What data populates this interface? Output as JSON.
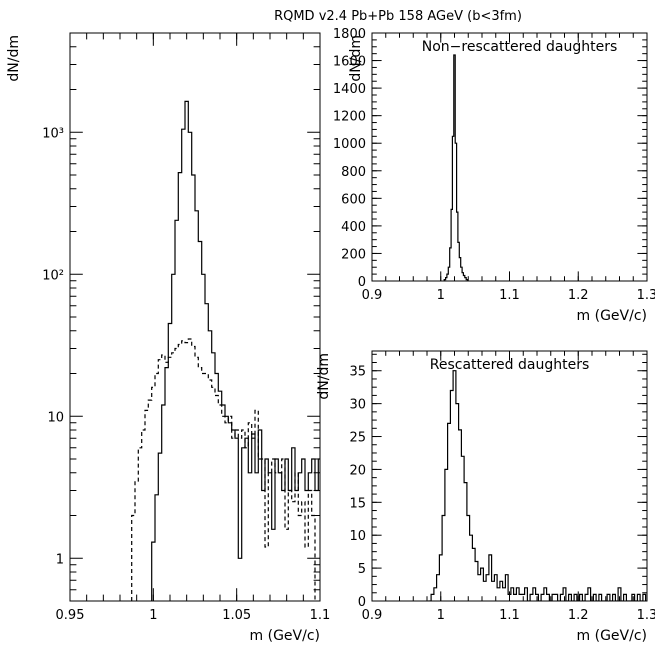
{
  "title": "RQMD v2.4 Pb+Pb 158 AGeV (b<3fm)",
  "chart_data": [
    {
      "type": "line",
      "ylabel": "dN/dm",
      "xlabel": "m (GeV/c)",
      "xlim": [
        0.95,
        1.1
      ],
      "ylim": [
        0.5,
        5000
      ],
      "yscale": "log",
      "xticks": [
        0.95,
        1,
        1.05,
        1.1
      ],
      "xtick_labels": [
        "0.95",
        "1",
        "1.05",
        "1.1"
      ],
      "yticks": [
        1,
        10,
        100,
        1000
      ],
      "ytick_labels": [
        "1",
        "10",
        "10²",
        "10³"
      ],
      "series": [
        {
          "style": "solid",
          "x": [
            1.0,
            1.002,
            1.004,
            1.006,
            1.008,
            1.01,
            1.012,
            1.014,
            1.016,
            1.018,
            1.02,
            1.022,
            1.024,
            1.026,
            1.028,
            1.03,
            1.032,
            1.034,
            1.036,
            1.038,
            1.04,
            1.042,
            1.044,
            1.046,
            1.048,
            1.05,
            1.052,
            1.054,
            1.056,
            1.058,
            1.06,
            1.062,
            1.064,
            1.066,
            1.068,
            1.07,
            1.072,
            1.074,
            1.076,
            1.078,
            1.08,
            1.082,
            1.084,
            1.086,
            1.088,
            1.09,
            1.092,
            1.094,
            1.096,
            1.098,
            1.1
          ],
          "y": [
            1.3,
            2.8,
            5.5,
            12,
            22,
            45,
            100,
            240,
            520,
            1050,
            1650,
            1000,
            500,
            280,
            170,
            100,
            62,
            40,
            28,
            20,
            15,
            12,
            10,
            9,
            8,
            7,
            1.0,
            6,
            7,
            4,
            7.5,
            4,
            8,
            3,
            5,
            4,
            1.6,
            5,
            4,
            3,
            5,
            3,
            6,
            3,
            4,
            5,
            3,
            4,
            5,
            3,
            5
          ]
        },
        {
          "style": "dashed",
          "x": [
            0.988,
            0.99,
            0.992,
            0.994,
            0.996,
            0.998,
            1.0,
            1.002,
            1.004,
            1.006,
            1.008,
            1.01,
            1.012,
            1.014,
            1.016,
            1.018,
            1.02,
            1.022,
            1.024,
            1.026,
            1.028,
            1.03,
            1.032,
            1.034,
            1.036,
            1.038,
            1.04,
            1.042,
            1.044,
            1.046,
            1.048,
            1.05,
            1.052,
            1.054,
            1.056,
            1.058,
            1.06,
            1.062,
            1.064,
            1.066,
            1.068,
            1.07,
            1.072,
            1.074,
            1.076,
            1.078,
            1.08,
            1.082,
            1.084,
            1.086,
            1.088,
            1.09,
            1.092,
            1.094,
            1.096
          ],
          "y": [
            2.0,
            3.5,
            6,
            8,
            11,
            13,
            16,
            20,
            25,
            27,
            24,
            26,
            28,
            30,
            32,
            34,
            33,
            35,
            31,
            26,
            22,
            20,
            20,
            18,
            16,
            14,
            12,
            10,
            9,
            10,
            7,
            8,
            7,
            8,
            6,
            9,
            7,
            11,
            5,
            5,
            1.2,
            4,
            5,
            4,
            4,
            5,
            1.6,
            3,
            2.5,
            4,
            2.0,
            2.5,
            1.2,
            3,
            2.0
          ]
        }
      ]
    },
    {
      "type": "line",
      "title": "Non−rescattered daughters",
      "ylabel": "dN/dm",
      "xlabel": "m (GeV/c)",
      "xlim": [
        0.9,
        1.3
      ],
      "ylim": [
        0,
        1800
      ],
      "xticks": [
        0.9,
        1,
        1.1,
        1.2,
        1.3
      ],
      "xtick_labels": [
        "0.9",
        "1",
        "1.1",
        "1.2",
        "1.3"
      ],
      "yticks": [
        0,
        200,
        400,
        600,
        800,
        1000,
        1200,
        1400,
        1600,
        1800
      ],
      "series": [
        {
          "style": "solid",
          "x": [
            1.006,
            1.008,
            1.01,
            1.012,
            1.014,
            1.016,
            1.018,
            1.02,
            1.022,
            1.024,
            1.026,
            1.028,
            1.03,
            1.032,
            1.034,
            1.036,
            1.038
          ],
          "y": [
            10,
            25,
            50,
            100,
            240,
            520,
            1050,
            1640,
            1000,
            500,
            280,
            170,
            100,
            60,
            40,
            25,
            10
          ]
        }
      ]
    },
    {
      "type": "line",
      "title": "Rescattered daughters",
      "ylabel": "dN/dm",
      "xlabel": "m (GeV/c)",
      "xlim": [
        0.9,
        1.3
      ],
      "ylim": [
        0,
        38
      ],
      "xticks": [
        0.9,
        1,
        1.1,
        1.2,
        1.3
      ],
      "xtick_labels": [
        "0.9",
        "1",
        "1.1",
        "1.2",
        "1.3"
      ],
      "yticks": [
        0,
        5,
        10,
        15,
        20,
        25,
        30,
        35
      ],
      "series": [
        {
          "style": "solid",
          "x": [
            0.984,
            0.988,
            0.992,
            0.996,
            1.0,
            1.004,
            1.008,
            1.012,
            1.016,
            1.02,
            1.024,
            1.028,
            1.032,
            1.036,
            1.04,
            1.044,
            1.048,
            1.052,
            1.056,
            1.06,
            1.064,
            1.068,
            1.072,
            1.076,
            1.08,
            1.084,
            1.088,
            1.092,
            1.096,
            1.1,
            1.104,
            1.108,
            1.112,
            1.116,
            1.12,
            1.124,
            1.128,
            1.132,
            1.136,
            1.14,
            1.144,
            1.148,
            1.152,
            1.156,
            1.16,
            1.164,
            1.168,
            1.172,
            1.176,
            1.18,
            1.184,
            1.188,
            1.192,
            1.196,
            1.2,
            1.204,
            1.208,
            1.212,
            1.216,
            1.22,
            1.224,
            1.228,
            1.232,
            1.236,
            1.24,
            1.244,
            1.248,
            1.252,
            1.256,
            1.26,
            1.264,
            1.268,
            1.272,
            1.276,
            1.28,
            1.284,
            1.288,
            1.292,
            1.296
          ],
          "y": [
            0,
            1,
            2,
            4,
            7,
            13,
            20,
            27,
            32,
            35,
            30,
            26,
            22,
            18,
            13,
            10,
            8,
            6,
            4,
            5,
            3,
            4,
            7,
            3,
            4,
            2,
            3,
            2,
            4,
            1,
            2,
            1,
            2,
            1,
            1,
            2,
            0,
            1,
            2,
            1,
            0,
            1,
            2,
            1,
            0,
            1,
            1,
            0,
            1,
            2,
            0,
            1,
            0,
            1,
            0,
            1,
            0,
            1,
            2,
            0,
            1,
            0,
            1,
            0,
            0,
            1,
            0,
            1,
            0,
            2,
            0,
            1,
            0,
            0,
            1,
            0,
            1,
            0,
            1
          ]
        }
      ]
    }
  ]
}
